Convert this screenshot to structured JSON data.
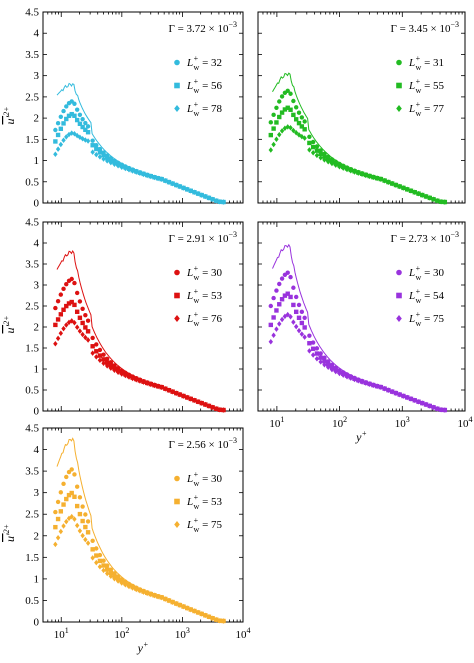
{
  "figure": {
    "ylabel": "u'^2+",
    "xlabel": "y+"
  },
  "chart_data": [
    {
      "type": "scatter",
      "panel": "top-left",
      "annotation": "Γ = 3.72 × 10^−3",
      "color": "#33bbdd",
      "xscale": "log",
      "xlim": [
        5,
        10000
      ],
      "ylim": [
        0,
        4.5
      ],
      "yticks": [
        0,
        0.5,
        1,
        1.5,
        2,
        2.5,
        3,
        3.5,
        4,
        4.5
      ],
      "xticklabels_shown": false,
      "ylabel_shown": true,
      "xlabel_shown": false,
      "legend_position": "right",
      "reference_line": {
        "peak": 2.8,
        "start": 2.5
      },
      "series": [
        {
          "name": "L+w = 32",
          "marker": "circle",
          "peak": 2.4,
          "start": 1.72
        },
        {
          "name": "L+w = 56",
          "marker": "square",
          "peak": 2.1,
          "start": 1.45
        },
        {
          "name": "L+w = 78",
          "marker": "diamond",
          "peak": 1.65,
          "start": 1.15
        }
      ]
    },
    {
      "type": "scatter",
      "panel": "top-right",
      "annotation": "Γ = 3.45 × 10^−3",
      "color": "#22bb22",
      "xscale": "log",
      "xlim": [
        5,
        10000
      ],
      "ylim": [
        0,
        4.5
      ],
      "yticks": [
        0,
        0.5,
        1,
        1.5,
        2,
        2.5,
        3,
        3.5,
        4,
        4.5
      ],
      "xticklabels_shown": false,
      "ylabel_shown": false,
      "xlabel_shown": false,
      "legend_position": "right",
      "reference_line": {
        "peak": 3.05,
        "start": 2.55
      },
      "series": [
        {
          "name": "L+w = 31",
          "marker": "circle",
          "peak": 2.65,
          "start": 1.9
        },
        {
          "name": "L+w = 55",
          "marker": "square",
          "peak": 2.25,
          "start": 1.6
        },
        {
          "name": "L+w = 77",
          "marker": "diamond",
          "peak": 1.8,
          "start": 1.25
        }
      ]
    },
    {
      "type": "scatter",
      "panel": "middle-left",
      "annotation": "Γ = 2.91 × 10^−3",
      "color": "#dd1111",
      "xscale": "log",
      "xlim": [
        5,
        10000
      ],
      "ylim": [
        0,
        4.5
      ],
      "yticks": [
        0,
        0.5,
        1,
        1.5,
        2,
        2.5,
        3,
        3.5,
        4,
        4.5
      ],
      "xticklabels_shown": false,
      "ylabel_shown": true,
      "xlabel_shown": false,
      "legend_position": "right",
      "reference_line": {
        "peak": 3.8,
        "start": 3.3
      },
      "series": [
        {
          "name": "L+w = 30",
          "marker": "circle",
          "peak": 3.15,
          "start": 2.45
        },
        {
          "name": "L+w = 53",
          "marker": "square",
          "peak": 2.6,
          "start": 2.05
        },
        {
          "name": "L+w = 76",
          "marker": "diamond",
          "peak": 2.15,
          "start": 1.6
        }
      ]
    },
    {
      "type": "scatter",
      "panel": "middle-right",
      "annotation": "Γ = 2.73 × 10^−3",
      "color": "#9933dd",
      "xscale": "log",
      "xlim": [
        5,
        10000
      ],
      "ylim": [
        0,
        4.5
      ],
      "yticks": [
        0,
        0.5,
        1,
        1.5,
        2,
        2.5,
        3,
        3.5,
        4,
        4.5
      ],
      "xticks": [
        10,
        100,
        1000,
        10000
      ],
      "xticklabels": [
        "10^1",
        "10^2",
        "10^3",
        "10^4"
      ],
      "xticklabels_shown": true,
      "ylabel_shown": false,
      "xlabel_shown": true,
      "legend_position": "right",
      "reference_line": {
        "peak": 3.95,
        "start": 3.3
      },
      "series": [
        {
          "name": "L+w = 30",
          "marker": "circle",
          "peak": 3.3,
          "start": 2.5
        },
        {
          "name": "L+w = 54",
          "marker": "square",
          "peak": 2.8,
          "start": 2.05
        },
        {
          "name": "L+w = 75",
          "marker": "diamond",
          "peak": 2.3,
          "start": 1.65
        }
      ]
    },
    {
      "type": "scatter",
      "panel": "bottom-left",
      "annotation": "Γ = 2.56 × 10^−3",
      "color": "#f5b030",
      "xscale": "log",
      "xlim": [
        5,
        10000
      ],
      "ylim": [
        0,
        4.5
      ],
      "yticks": [
        0,
        0.5,
        1,
        1.5,
        2,
        2.5,
        3,
        3.5,
        4,
        4.5
      ],
      "xticks": [
        10,
        100,
        1000,
        10000
      ],
      "xticklabels": [
        "10^1",
        "10^2",
        "10^3",
        "10^4"
      ],
      "xticklabels_shown": true,
      "ylabel_shown": true,
      "xlabel_shown": true,
      "legend_position": "right",
      "reference_line": {
        "peak": 4.25,
        "start": 3.5
      },
      "series": [
        {
          "name": "L+w = 30",
          "marker": "circle",
          "peak": 3.55,
          "start": 2.55
        },
        {
          "name": "L+w = 53",
          "marker": "square",
          "peak": 3.0,
          "start": 2.2
        },
        {
          "name": "L+w = 75",
          "marker": "diamond",
          "peak": 2.45,
          "start": 1.8
        }
      ]
    }
  ]
}
